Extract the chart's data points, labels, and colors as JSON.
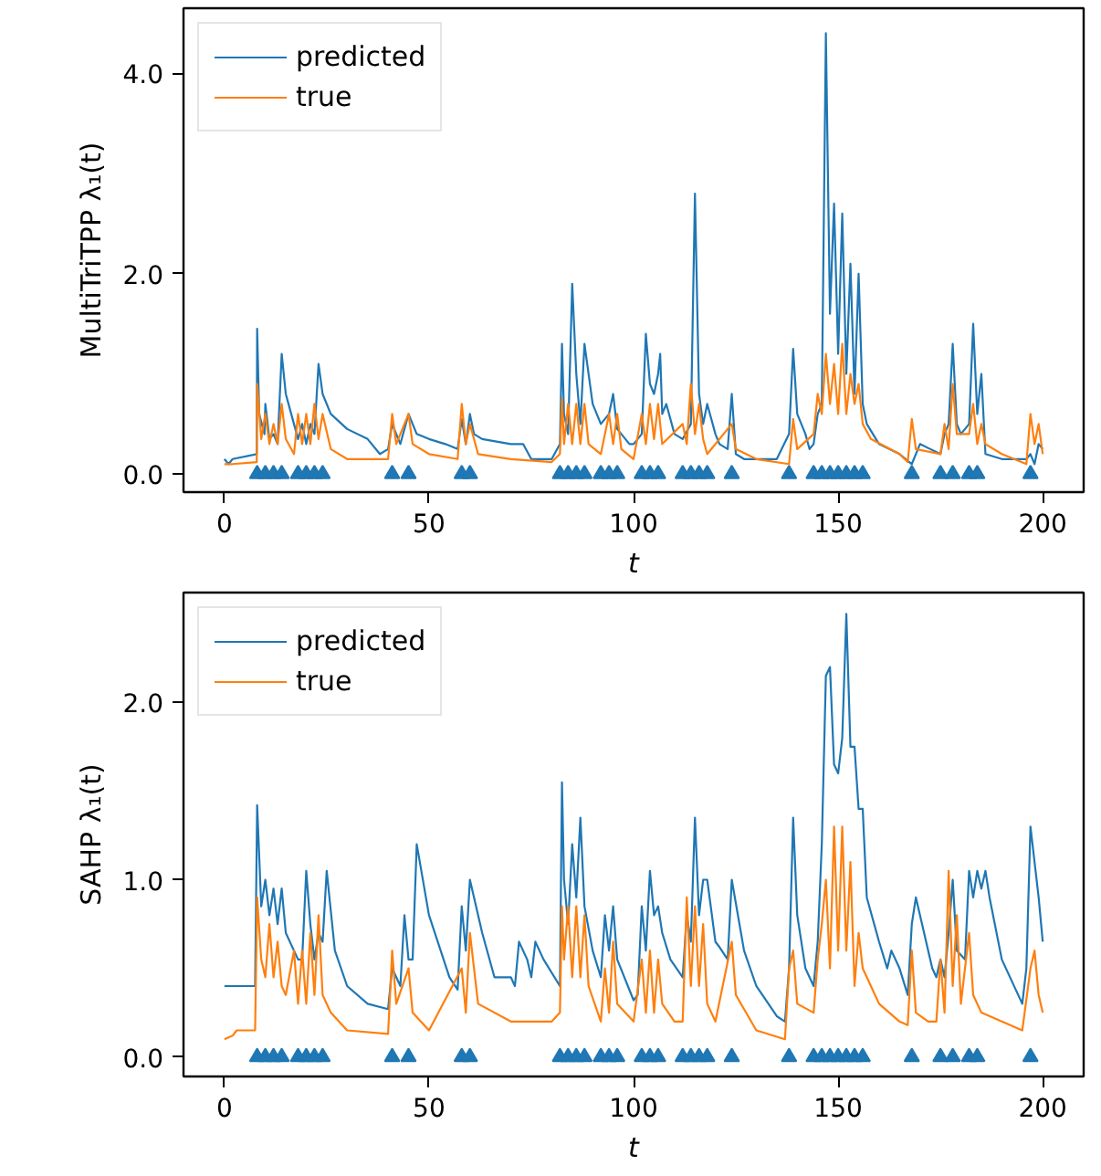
{
  "chart_data": [
    {
      "type": "line",
      "xlabel": "t",
      "ylabel": "MultiTriTPP λ₁(t)",
      "xlim": [
        -10,
        210
      ],
      "ylim": [
        -0.18,
        4.65
      ],
      "xticks": [
        0,
        50,
        100,
        150,
        200
      ],
      "yticks": [
        {
          "value": 0,
          "label": "0.0"
        },
        {
          "value": 2,
          "label": "2.0"
        },
        {
          "value": 4,
          "label": "4.0"
        }
      ],
      "legend": "top left",
      "series": [
        {
          "name": "predicted",
          "color": "#1f77b4",
          "x": [
            0,
            1,
            2,
            7.9,
            8,
            8.5,
            9.8,
            10,
            11,
            12,
            13,
            14,
            15,
            17,
            18,
            19,
            20,
            21,
            22,
            23,
            24,
            26,
            30,
            35,
            38,
            40,
            41,
            43,
            45,
            47,
            50,
            54,
            57,
            58,
            59,
            60,
            61,
            63,
            70,
            73,
            75,
            80,
            82,
            82.5,
            83,
            84,
            85,
            86,
            87,
            88,
            90,
            92,
            94,
            95,
            96,
            99,
            100,
            102,
            103,
            104,
            105,
            106,
            106.5,
            107,
            108,
            110,
            112,
            114,
            115,
            116,
            117,
            118,
            120,
            121,
            123,
            124,
            125,
            127,
            130,
            135,
            138,
            139,
            140,
            142,
            143,
            144,
            145,
            146,
            147,
            148,
            149,
            150,
            151,
            152,
            153,
            154,
            155,
            156,
            157,
            160,
            165,
            168,
            170,
            175,
            176,
            177,
            178,
            179,
            180,
            182,
            183,
            184,
            185,
            186,
            190,
            196,
            197,
            198,
            199,
            200
          ],
          "values": [
            0.15,
            0.1,
            0.15,
            0.2,
            1.45,
            0.6,
            0.4,
            0.7,
            0.35,
            0.4,
            0.3,
            1.2,
            0.8,
            0.5,
            0.35,
            0.5,
            0.3,
            0.5,
            0.4,
            1.1,
            0.8,
            0.6,
            0.45,
            0.35,
            0.2,
            0.25,
            0.5,
            0.3,
            0.6,
            0.4,
            0.35,
            0.3,
            0.25,
            0.55,
            0.3,
            0.6,
            0.4,
            0.35,
            0.3,
            0.3,
            0.15,
            0.15,
            0.3,
            1.3,
            0.6,
            0.4,
            1.9,
            1.0,
            0.5,
            1.3,
            0.7,
            0.5,
            0.6,
            0.8,
            0.45,
            0.3,
            0.3,
            0.4,
            1.4,
            0.9,
            0.8,
            1.0,
            1.2,
            0.6,
            0.7,
            0.4,
            0.35,
            0.5,
            2.8,
            0.8,
            0.5,
            0.7,
            0.4,
            0.3,
            0.25,
            0.8,
            0.2,
            0.15,
            0.15,
            0.15,
            0.4,
            1.25,
            0.6,
            0.4,
            0.25,
            0.3,
            0.6,
            0.7,
            4.4,
            1.6,
            2.7,
            1.2,
            2.6,
            1.0,
            2.1,
            0.8,
            2.0,
            0.7,
            0.5,
            0.3,
            0.2,
            0.1,
            0.3,
            0.2,
            0.4,
            0.5,
            1.3,
            0.5,
            0.4,
            0.5,
            1.5,
            0.6,
            1.0,
            0.2,
            0.15,
            0.15,
            0.2,
            0.1,
            0.3,
            0.25
          ]
        },
        {
          "name": "true",
          "color": "#ff7f0e",
          "x": [
            0,
            2,
            7.9,
            8,
            9,
            10,
            11,
            12,
            13,
            14,
            15,
            17,
            18,
            19,
            20,
            21,
            22,
            23,
            24,
            26,
            30,
            40,
            41,
            42,
            45,
            46,
            50,
            57,
            58,
            59,
            60,
            62,
            70,
            80,
            82,
            82.5,
            83,
            84,
            85,
            86,
            87,
            88,
            89,
            92,
            94,
            95,
            96,
            97,
            100,
            102,
            103,
            104,
            105,
            106,
            107,
            112,
            113,
            114,
            115,
            116,
            117,
            118,
            124,
            125,
            130,
            138,
            139,
            140,
            144,
            145,
            146,
            147,
            148,
            149,
            150,
            151,
            152,
            153,
            154,
            155,
            156,
            158,
            165,
            167,
            168,
            169,
            175,
            176,
            177,
            178,
            179,
            182,
            183,
            184,
            185,
            186,
            190,
            196,
            197,
            198,
            199,
            200
          ],
          "values": [
            0.1,
            0.1,
            0.12,
            0.9,
            0.35,
            0.6,
            0.3,
            0.5,
            0.3,
            0.7,
            0.35,
            0.2,
            0.6,
            0.3,
            0.6,
            0.3,
            0.7,
            0.35,
            0.6,
            0.25,
            0.15,
            0.15,
            0.6,
            0.3,
            0.6,
            0.3,
            0.2,
            0.15,
            0.7,
            0.3,
            0.5,
            0.2,
            0.15,
            0.12,
            0.2,
            0.75,
            0.3,
            0.7,
            0.3,
            0.7,
            0.3,
            0.7,
            0.3,
            0.2,
            0.6,
            0.3,
            0.6,
            0.25,
            0.15,
            0.6,
            0.3,
            0.7,
            0.35,
            0.7,
            0.3,
            0.5,
            0.3,
            0.9,
            0.4,
            0.7,
            0.35,
            0.2,
            0.5,
            0.25,
            0.15,
            0.1,
            0.55,
            0.25,
            0.4,
            0.8,
            0.6,
            1.2,
            0.7,
            1.1,
            0.6,
            1.3,
            0.6,
            1.0,
            0.7,
            0.9,
            0.5,
            0.35,
            0.2,
            0.12,
            0.55,
            0.25,
            0.2,
            0.5,
            0.25,
            0.9,
            0.4,
            0.4,
            0.7,
            0.3,
            0.5,
            0.3,
            0.2,
            0.1,
            0.6,
            0.3,
            0.5,
            0.2
          ]
        },
        {
          "type": "scatter",
          "marker": "triangle",
          "color": "#1f77b4",
          "x": [
            8,
            10,
            12,
            14,
            18,
            20,
            22,
            24,
            41,
            45,
            58,
            60,
            82,
            84,
            86,
            88,
            92,
            94,
            96,
            102,
            104,
            106,
            112,
            114,
            116,
            118,
            124,
            138,
            144,
            146,
            148,
            150,
            152,
            154,
            156,
            168,
            175,
            178,
            182,
            184,
            197
          ],
          "values": [
            0,
            0,
            0,
            0,
            0,
            0,
            0,
            0,
            0,
            0,
            0,
            0,
            0,
            0,
            0,
            0,
            0,
            0,
            0,
            0,
            0,
            0,
            0,
            0,
            0,
            0,
            0,
            0,
            0,
            0,
            0,
            0,
            0,
            0,
            0,
            0,
            0,
            0,
            0,
            0,
            0
          ]
        }
      ]
    },
    {
      "type": "line",
      "xlabel": "t",
      "ylabel": "SAHP λ₁(t)",
      "xlim": [
        -10,
        210
      ],
      "ylim": [
        -0.11,
        2.62
      ],
      "xticks": [
        0,
        50,
        100,
        150,
        200
      ],
      "yticks": [
        {
          "value": 0,
          "label": "0.0"
        },
        {
          "value": 1,
          "label": "1.0"
        },
        {
          "value": 2,
          "label": "2.0"
        }
      ],
      "legend": "top left",
      "series": [
        {
          "name": "predicted",
          "color": "#1f77b4",
          "x": [
            0,
            7.5,
            8,
            9,
            10,
            11,
            12,
            13,
            14,
            15,
            17,
            18,
            19,
            20,
            21,
            22,
            23,
            24,
            25,
            27,
            30,
            35,
            40,
            41,
            43,
            44,
            45,
            46,
            47,
            50,
            55,
            57,
            58,
            59,
            60,
            63,
            66,
            70,
            71,
            72,
            74,
            75,
            76,
            78,
            82,
            82.5,
            83,
            84,
            85,
            86,
            87,
            88,
            90,
            92,
            93,
            94,
            95,
            96,
            100,
            101,
            102,
            103,
            104,
            105,
            106,
            107,
            109,
            112,
            113,
            114,
            115,
            116,
            117,
            118,
            120,
            121,
            123,
            124,
            127,
            130,
            135,
            137,
            138,
            139,
            140,
            142,
            144,
            145,
            146,
            147,
            148,
            149,
            150,
            151,
            152,
            153,
            154,
            155,
            156,
            157,
            160,
            162,
            163,
            165,
            167,
            168,
            169,
            171,
            173,
            174,
            175,
            176,
            177,
            178,
            179,
            181,
            182,
            183,
            184,
            185,
            186,
            187,
            190,
            195,
            196,
            197,
            199,
            200
          ],
          "values": [
            0.4,
            0.4,
            1.42,
            0.85,
            1.0,
            0.8,
            0.95,
            0.75,
            0.95,
            0.7,
            0.6,
            0.55,
            0.55,
            1.05,
            0.75,
            0.55,
            0.7,
            0.65,
            1.05,
            0.6,
            0.4,
            0.3,
            0.27,
            0.5,
            0.4,
            0.8,
            0.55,
            0.55,
            1.2,
            0.8,
            0.45,
            0.38,
            0.85,
            0.6,
            1.0,
            0.7,
            0.45,
            0.45,
            0.4,
            0.65,
            0.55,
            0.45,
            0.65,
            0.55,
            0.4,
            1.55,
            1.0,
            0.75,
            1.2,
            0.9,
            1.35,
            0.85,
            0.6,
            0.45,
            0.8,
            0.6,
            0.85,
            0.55,
            0.32,
            0.35,
            0.85,
            0.6,
            1.05,
            0.8,
            0.85,
            0.7,
            0.55,
            0.45,
            0.8,
            0.65,
            1.35,
            0.8,
            1.0,
            1.0,
            0.65,
            0.62,
            0.55,
            1.0,
            0.6,
            0.4,
            0.23,
            0.2,
            0.5,
            1.35,
            0.8,
            0.5,
            0.4,
            0.65,
            1.2,
            2.15,
            2.2,
            1.65,
            1.6,
            1.8,
            2.5,
            1.75,
            1.75,
            1.4,
            1.4,
            0.9,
            0.65,
            0.5,
            0.6,
            0.5,
            0.35,
            0.75,
            0.9,
            0.7,
            0.5,
            0.45,
            0.55,
            0.45,
            0.7,
            1.0,
            0.6,
            0.55,
            1.05,
            0.9,
            1.05,
            0.95,
            1.05,
            0.9,
            0.55,
            0.3,
            0.5,
            1.3,
            0.9,
            0.65
          ]
        },
        {
          "name": "true",
          "color": "#ff7f0e",
          "x": [
            0,
            2,
            3,
            7.5,
            8,
            9,
            10,
            11,
            12,
            13,
            14,
            15,
            17,
            18,
            19,
            20,
            21,
            22,
            23,
            24,
            26,
            30,
            40,
            41,
            42,
            45,
            46,
            50,
            58,
            59,
            60,
            62,
            70,
            80,
            82,
            82.5,
            83,
            84,
            85,
            86,
            87,
            88,
            89,
            92,
            93,
            94,
            95,
            96,
            100,
            102,
            103,
            104,
            105,
            106,
            107,
            110,
            112,
            113,
            114,
            115,
            116,
            117,
            118,
            120,
            124,
            125,
            130,
            137,
            138,
            139,
            140,
            144,
            145,
            146,
            147,
            148,
            149,
            150,
            151,
            152,
            153,
            154,
            155,
            156,
            160,
            165,
            167,
            168,
            169,
            172,
            174,
            175,
            176,
            177,
            178,
            179,
            180,
            182,
            183,
            185,
            190,
            195,
            197,
            198,
            199,
            200
          ],
          "values": [
            0.1,
            0.12,
            0.15,
            0.15,
            0.9,
            0.55,
            0.45,
            0.75,
            0.45,
            0.65,
            0.4,
            0.35,
            0.6,
            0.3,
            0.6,
            0.3,
            0.7,
            0.35,
            0.8,
            0.35,
            0.25,
            0.15,
            0.13,
            0.6,
            0.3,
            0.5,
            0.25,
            0.15,
            0.5,
            0.25,
            0.7,
            0.3,
            0.2,
            0.2,
            0.25,
            0.85,
            0.55,
            0.85,
            0.45,
            0.85,
            0.45,
            0.8,
            0.4,
            0.2,
            0.5,
            0.25,
            0.65,
            0.3,
            0.2,
            0.55,
            0.25,
            0.6,
            0.25,
            0.55,
            0.3,
            0.2,
            0.2,
            0.9,
            0.4,
            0.85,
            0.4,
            0.75,
            0.3,
            0.2,
            0.65,
            0.35,
            0.15,
            0.1,
            0.5,
            0.6,
            0.3,
            0.25,
            0.55,
            0.75,
            1.0,
            0.5,
            1.3,
            0.6,
            1.3,
            0.6,
            1.1,
            0.4,
            0.7,
            0.5,
            0.3,
            0.2,
            0.18,
            0.6,
            0.25,
            0.2,
            0.2,
            0.55,
            0.25,
            1.05,
            0.4,
            0.8,
            0.3,
            0.7,
            0.35,
            0.25,
            0.2,
            0.15,
            0.5,
            0.6,
            0.35,
            0.25
          ]
        },
        {
          "type": "scatter",
          "marker": "triangle",
          "color": "#1f77b4",
          "x": [
            8,
            10,
            12,
            14,
            18,
            20,
            22,
            24,
            41,
            45,
            58,
            60,
            82,
            84,
            86,
            88,
            92,
            94,
            96,
            102,
            104,
            106,
            112,
            114,
            116,
            118,
            124,
            138,
            144,
            146,
            148,
            150,
            152,
            154,
            156,
            168,
            175,
            178,
            182,
            184,
            197
          ],
          "values": [
            0,
            0,
            0,
            0,
            0,
            0,
            0,
            0,
            0,
            0,
            0,
            0,
            0,
            0,
            0,
            0,
            0,
            0,
            0,
            0,
            0,
            0,
            0,
            0,
            0,
            0,
            0,
            0,
            0,
            0,
            0,
            0,
            0,
            0,
            0,
            0,
            0,
            0,
            0,
            0,
            0
          ]
        }
      ]
    }
  ]
}
